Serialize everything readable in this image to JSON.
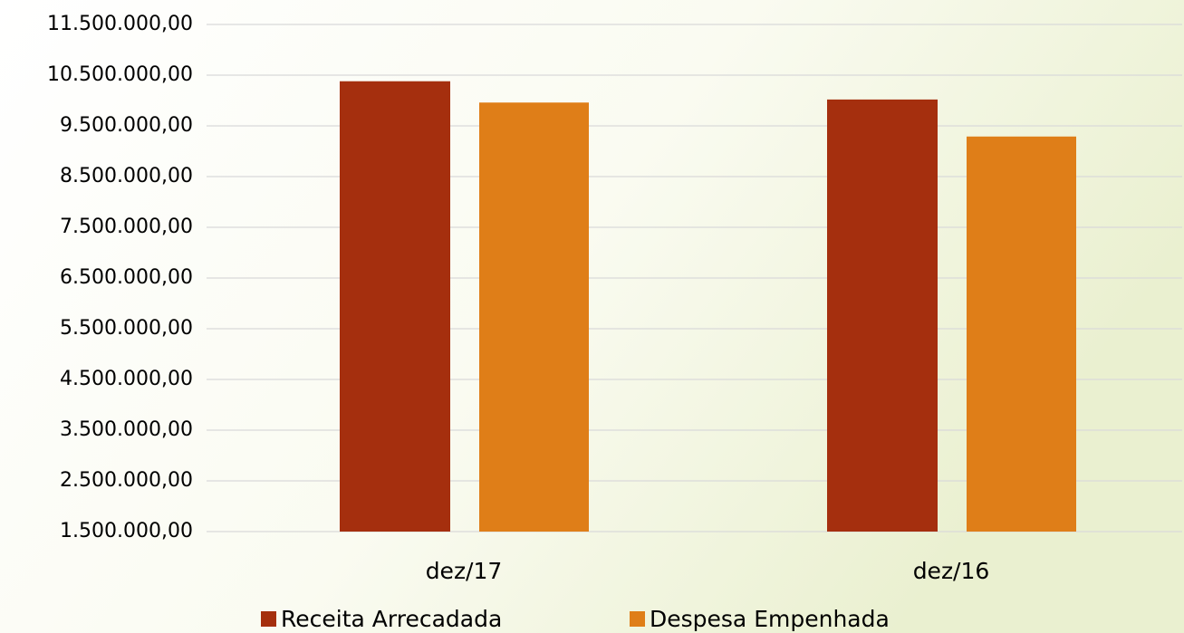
{
  "chart_data": {
    "type": "bar",
    "categories": [
      "dez/17",
      "dez/16"
    ],
    "series": [
      {
        "name": "Receita Arrecadada",
        "color": "#a52f0e",
        "values": [
          10380000,
          10020000
        ]
      },
      {
        "name": "Despesa Empenhada",
        "color": "#df7e18",
        "values": [
          9960000,
          9290000
        ]
      }
    ],
    "ylim": [
      1500000,
      11500000
    ],
    "yticks": [
      {
        "value": 1500000,
        "label": "1.500.000,00"
      },
      {
        "value": 2500000,
        "label": "2.500.000,00"
      },
      {
        "value": 3500000,
        "label": "3.500.000,00"
      },
      {
        "value": 4500000,
        "label": "4.500.000,00"
      },
      {
        "value": 5500000,
        "label": "5.500.000,00"
      },
      {
        "value": 6500000,
        "label": "6.500.000,00"
      },
      {
        "value": 7500000,
        "label": "7.500.000,00"
      },
      {
        "value": 8500000,
        "label": "8.500.000,00"
      },
      {
        "value": 9500000,
        "label": "9.500.000,00"
      },
      {
        "value": 10500000,
        "label": "10.500.000,00"
      },
      {
        "value": 11500000,
        "label": "11.500.000,00"
      }
    ],
    "grid": true,
    "legend": "bottom"
  }
}
